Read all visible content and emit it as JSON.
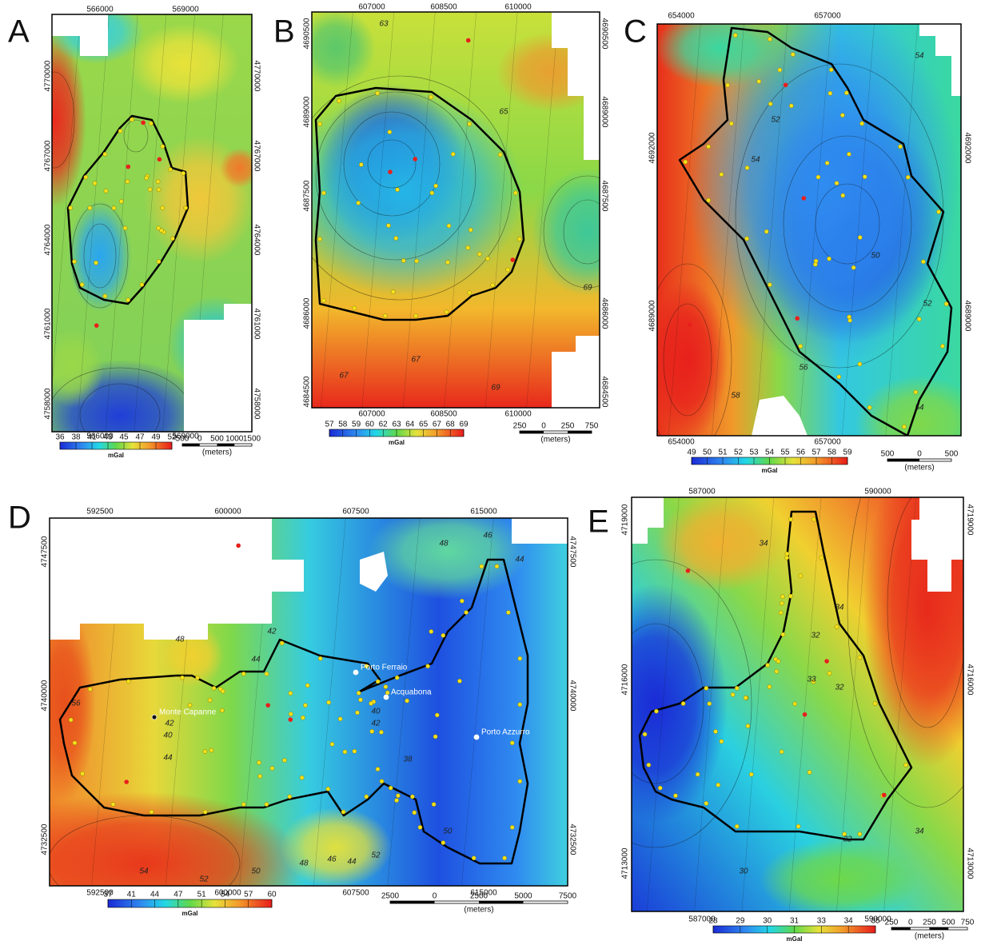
{
  "panels": [
    {
      "letter": "A",
      "x_ticks": [
        566000,
        569000
      ],
      "y_ticks": [
        4770000,
        4767000,
        4764000,
        4761000,
        4758000
      ],
      "colorbar": {
        "ticks": [
          36,
          38,
          41,
          43,
          45,
          47,
          49,
          52
        ],
        "unit": "mGal"
      },
      "scale": {
        "labels": [
          "500",
          "0",
          "500",
          "1000",
          "1500"
        ],
        "unit": "(meters)"
      },
      "contour_labels": [],
      "places": []
    },
    {
      "letter": "B",
      "x_ticks": [
        607000,
        608500,
        610000
      ],
      "y_ticks": [
        4690500,
        4689000,
        4687500,
        4686000,
        4684500
      ],
      "colorbar": {
        "ticks": [
          57,
          58,
          59,
          60,
          62,
          63,
          64,
          65,
          67,
          68,
          69
        ],
        "unit": "mGal"
      },
      "scale": {
        "labels": [
          "250",
          "0",
          "250",
          "750"
        ],
        "unit": "(meters)"
      },
      "contour_labels": [
        "63",
        "65",
        "67",
        "69",
        "69",
        "67"
      ],
      "places": []
    },
    {
      "letter": "C",
      "x_ticks": [
        654000,
        657000
      ],
      "y_ticks": [
        4692000,
        4689000
      ],
      "colorbar": {
        "ticks": [
          49,
          50,
          51,
          52,
          53,
          54,
          55,
          56,
          57,
          58,
          59
        ],
        "unit": "mGal"
      },
      "scale": {
        "labels": [
          "500",
          "0",
          "500"
        ],
        "unit": "(meters)"
      },
      "contour_labels": [
        "54",
        "52",
        "54",
        "50",
        "52",
        "56",
        "58",
        "54"
      ],
      "places": []
    },
    {
      "letter": "D",
      "x_ticks": [
        592500,
        600000,
        607500,
        615000
      ],
      "y_ticks": [
        4747500,
        4740000,
        4732500
      ],
      "colorbar": {
        "ticks": [
          37,
          41,
          44,
          47,
          51,
          54,
          57,
          60
        ],
        "unit": "mGal"
      },
      "scale": {
        "labels": [
          "2500",
          "0",
          "2500",
          "5000",
          "7500"
        ],
        "unit": "(meters)"
      },
      "contour_labels": [
        "48",
        "46",
        "44",
        "42",
        "40",
        "44",
        "48",
        "42",
        "40",
        "38",
        "56",
        "54",
        "52",
        "50",
        "48",
        "46",
        "44",
        "52",
        "50",
        "42",
        "44"
      ],
      "places": [
        "Monte Capanne",
        "Porto Ferraio",
        "Acquabona",
        "Porto Azzurro"
      ]
    },
    {
      "letter": "E",
      "x_ticks": [
        587000,
        590000
      ],
      "y_ticks": [
        4719000,
        4716000,
        4713000
      ],
      "colorbar": {
        "ticks": [
          28,
          29,
          30,
          31,
          33,
          34,
          35
        ],
        "unit": "mGal"
      },
      "scale": {
        "labels": [
          "250",
          "0",
          "250",
          "500",
          "750"
        ],
        "unit": "(meters)"
      },
      "contour_labels": [
        "34",
        "32",
        "33",
        "32",
        "34",
        "32",
        "30",
        "34"
      ],
      "places": []
    }
  ]
}
